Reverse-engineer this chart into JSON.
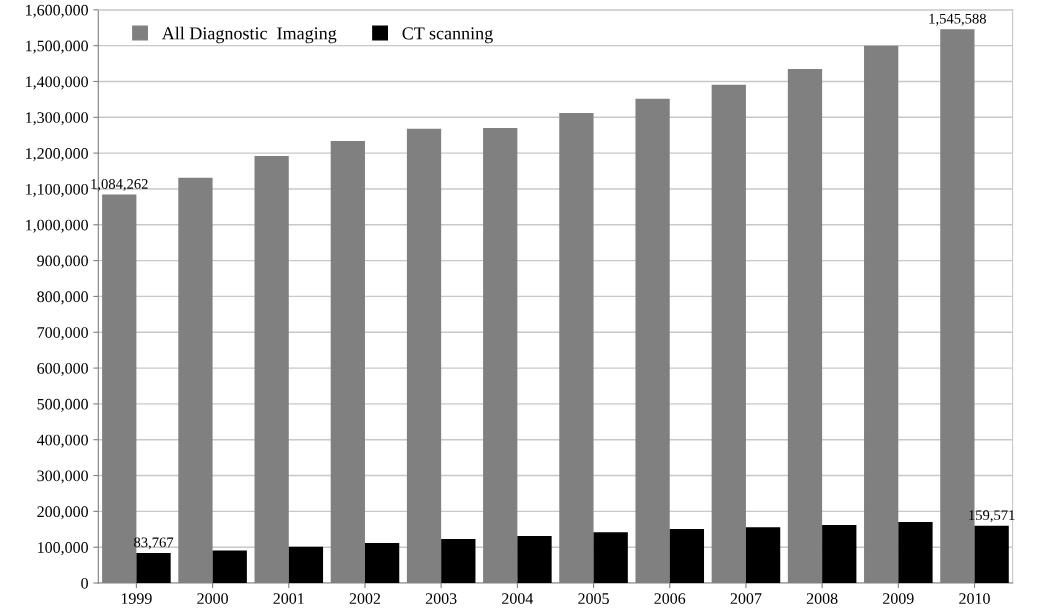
{
  "chart_data": {
    "type": "bar",
    "categories": [
      "1999",
      "2000",
      "2001",
      "2002",
      "2003",
      "2004",
      "2005",
      "2006",
      "2007",
      "2008",
      "2009",
      "2010"
    ],
    "series": [
      {
        "name": "All Diagnostic  Imaging",
        "color": "#808080",
        "values": [
          1084262,
          1131000,
          1192000,
          1234000,
          1268000,
          1270000,
          1312000,
          1352000,
          1391000,
          1435000,
          1500000,
          1545588
        ],
        "value_labels": [
          "1,084,262",
          null,
          null,
          null,
          null,
          null,
          null,
          null,
          null,
          null,
          null,
          "1,545,588"
        ]
      },
      {
        "name": "CT scanning",
        "color": "#000000",
        "values": [
          83767,
          91000,
          101000,
          112000,
          123000,
          131000,
          142000,
          151000,
          156000,
          162000,
          170000,
          159571
        ],
        "value_labels": [
          "83,767",
          null,
          null,
          null,
          null,
          null,
          null,
          null,
          null,
          null,
          null,
          "159,571"
        ]
      }
    ],
    "ylim": [
      0,
      1600000
    ],
    "yticks": [
      {
        "value": 0,
        "label": "0"
      },
      {
        "value": 100000,
        "label": "100,000"
      },
      {
        "value": 200000,
        "label": "200,000"
      },
      {
        "value": 300000,
        "label": "300,000"
      },
      {
        "value": 400000,
        "label": "400,000"
      },
      {
        "value": 500000,
        "label": "500,000"
      },
      {
        "value": 600000,
        "label": "600,000"
      },
      {
        "value": 700000,
        "label": "700,000"
      },
      {
        "value": 800000,
        "label": "800,000"
      },
      {
        "value": 900000,
        "label": "900,000"
      },
      {
        "value": 1000000,
        "label": "1,000,000"
      },
      {
        "value": 1100000,
        "label": "1,100,000"
      },
      {
        "value": 1200000,
        "label": "1,200,000"
      },
      {
        "value": 1300000,
        "label": "1,300,000"
      },
      {
        "value": 1400000,
        "label": "1,400,000"
      },
      {
        "value": 1500000,
        "label": "1,500,000"
      },
      {
        "value": 1600000,
        "label": "1,600,000"
      }
    ],
    "grid": "y",
    "legend": "top left"
  }
}
